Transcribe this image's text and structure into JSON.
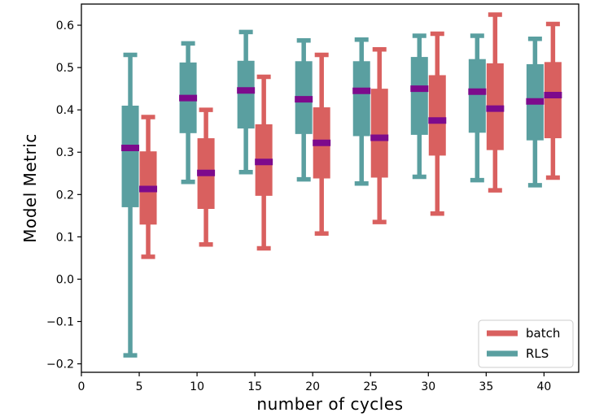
{
  "chart_data": {
    "type": "boxplot",
    "xlabel": "number of cycles",
    "ylabel": "Model Metric",
    "xlim": [
      0,
      43
    ],
    "ylim": [
      -0.22,
      0.65
    ],
    "xticks": [
      0,
      5,
      10,
      15,
      20,
      25,
      30,
      35,
      40
    ],
    "yticks": [
      -0.2,
      -0.1,
      0.0,
      0.1,
      0.2,
      0.3,
      0.4,
      0.5,
      0.6
    ],
    "ytick_labels": [
      "−0.2",
      "−0.1",
      "0.0",
      "0.1",
      "0.2",
      "0.3",
      "0.4",
      "0.5",
      "0.6"
    ],
    "legend": {
      "position": "bottom-right",
      "entries": [
        "batch",
        "RLS"
      ]
    },
    "colors": {
      "batch": "#d9605f",
      "RLS": "#5a9fa0",
      "median": "#7d0a8c"
    },
    "series": [
      {
        "name": "RLS",
        "color": "#5a9fa0",
        "boxes": [
          {
            "x": 5,
            "whislo": -0.18,
            "q1": 0.17,
            "med": 0.31,
            "q3": 0.41,
            "whishi": 0.53
          },
          {
            "x": 10,
            "whislo": 0.23,
            "q1": 0.345,
            "med": 0.428,
            "q3": 0.512,
            "whishi": 0.557
          },
          {
            "x": 15,
            "whislo": 0.253,
            "q1": 0.356,
            "med": 0.446,
            "q3": 0.516,
            "whishi": 0.584
          },
          {
            "x": 20,
            "whislo": 0.236,
            "q1": 0.343,
            "med": 0.425,
            "q3": 0.515,
            "whishi": 0.564
          },
          {
            "x": 25,
            "whislo": 0.226,
            "q1": 0.338,
            "med": 0.445,
            "q3": 0.515,
            "whishi": 0.566
          },
          {
            "x": 30,
            "whislo": 0.242,
            "q1": 0.341,
            "med": 0.45,
            "q3": 0.525,
            "whishi": 0.575
          },
          {
            "x": 35,
            "whislo": 0.234,
            "q1": 0.346,
            "med": 0.443,
            "q3": 0.52,
            "whishi": 0.575
          },
          {
            "x": 40,
            "whislo": 0.222,
            "q1": 0.328,
            "med": 0.42,
            "q3": 0.508,
            "whishi": 0.568
          }
        ]
      },
      {
        "name": "batch",
        "color": "#d9605f",
        "boxes": [
          {
            "x": 5,
            "whislo": 0.053,
            "q1": 0.129,
            "med": 0.213,
            "q3": 0.302,
            "whishi": 0.383
          },
          {
            "x": 10,
            "whislo": 0.082,
            "q1": 0.166,
            "med": 0.251,
            "q3": 0.333,
            "whishi": 0.4
          },
          {
            "x": 15,
            "whislo": 0.073,
            "q1": 0.197,
            "med": 0.277,
            "q3": 0.366,
            "whishi": 0.478
          },
          {
            "x": 20,
            "whislo": 0.108,
            "q1": 0.238,
            "med": 0.322,
            "q3": 0.406,
            "whishi": 0.53
          },
          {
            "x": 25,
            "whislo": 0.135,
            "q1": 0.24,
            "med": 0.334,
            "q3": 0.45,
            "whishi": 0.543
          },
          {
            "x": 30,
            "whislo": 0.155,
            "q1": 0.292,
            "med": 0.375,
            "q3": 0.482,
            "whishi": 0.58
          },
          {
            "x": 35,
            "whislo": 0.21,
            "q1": 0.305,
            "med": 0.403,
            "q3": 0.51,
            "whishi": 0.625
          },
          {
            "x": 40,
            "whislo": 0.24,
            "q1": 0.333,
            "med": 0.435,
            "q3": 0.513,
            "whishi": 0.603
          }
        ]
      }
    ]
  }
}
